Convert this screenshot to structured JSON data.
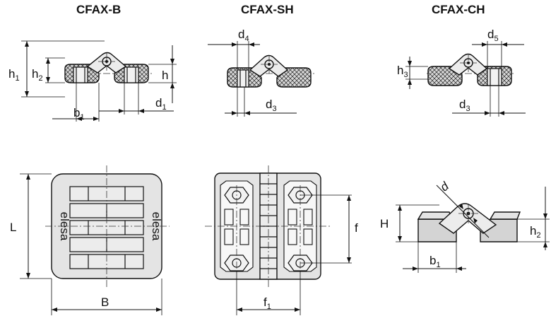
{
  "titles": {
    "b": "CFAX-B",
    "sh": "CFAX-SH",
    "ch": "CFAX-CH"
  },
  "labels": {
    "h1": {
      "main": "h",
      "sub": "1"
    },
    "h2": {
      "main": "h",
      "sub": "2"
    },
    "h": {
      "main": "h"
    },
    "b1": {
      "main": "b",
      "sub": "1"
    },
    "d1": {
      "main": "d",
      "sub": "1"
    },
    "d4": {
      "main": "d",
      "sub": "4"
    },
    "d3": {
      "main": "d",
      "sub": "3"
    },
    "d5": {
      "main": "d",
      "sub": "5"
    },
    "h3": {
      "main": "h",
      "sub": "3"
    },
    "L": {
      "main": "L"
    },
    "B": {
      "main": "B"
    },
    "f": {
      "main": "f"
    },
    "f1": {
      "main": "f",
      "sub": "1"
    },
    "d": {
      "main": "d"
    },
    "H": {
      "main": "H"
    },
    "h2_ch": {
      "main": "h",
      "sub": "2"
    },
    "b1_ch": {
      "main": "b",
      "sub": "1"
    }
  },
  "logo": "elesa",
  "colors": {
    "ink": "#111111",
    "fill": "#e4e4e4",
    "background": "#ffffff"
  }
}
